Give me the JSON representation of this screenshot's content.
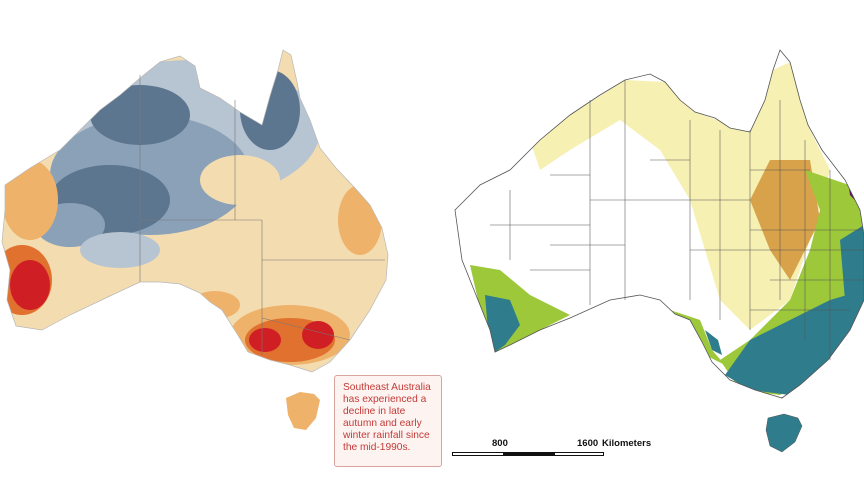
{
  "left_map": {
    "colors": {
      "deep_blue": "#5d7690",
      "blue": "#8aa1b8",
      "light_blue": "#b7c4d1",
      "cream": "#f3dcb0",
      "orange": "#efb26a",
      "dark_orange": "#e0712f",
      "red": "#d01e25"
    }
  },
  "right_map": {
    "colors": {
      "none": "#ffffff",
      "pale_yellow": "#f6f0b3",
      "ochre": "#d8a24b",
      "green": "#9dc83a",
      "teal": "#2f7c8d",
      "purple": "#5b1167",
      "border": "#555555"
    }
  },
  "callout": {
    "text": "Southeast Australia has experienced a decline in late autumn and early winter rainfall since the mid-1990s."
  },
  "scale_bar": {
    "label_800": "800",
    "label_1600": "1600",
    "units": "Kilometers"
  }
}
